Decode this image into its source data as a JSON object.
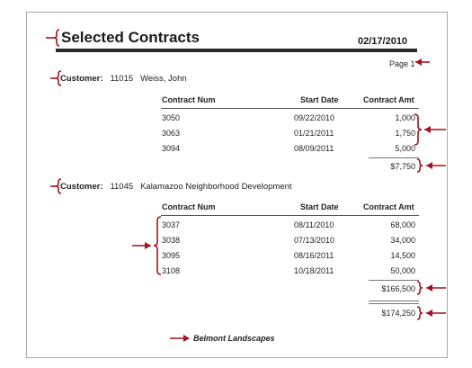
{
  "report": {
    "title": "Selected Contracts",
    "date": "02/17/2010",
    "page_label": "Page 1",
    "footer": "Belmont Landscapes"
  },
  "columns": {
    "contract_num": "Contract Num",
    "start_date": "Start Date",
    "contract_amt": "Contract Amt"
  },
  "groups": [
    {
      "label": "Customer:",
      "id": "11015",
      "name": "Weiss, John",
      "rows": [
        {
          "num": "3050",
          "date": "09/22/2010",
          "amt": "1,000"
        },
        {
          "num": "3063",
          "date": "01/21/2011",
          "amt": "1,750"
        },
        {
          "num": "3094",
          "date": "08/09/2011",
          "amt": "5,000"
        }
      ],
      "subtotal": "$7,750"
    },
    {
      "label": "Customer:",
      "id": "11045",
      "name": "Kalamazoo Neighborhood Development",
      "rows": [
        {
          "num": "3037",
          "date": "08/11/2010",
          "amt": "68,000"
        },
        {
          "num": "3038",
          "date": "07/13/2010",
          "amt": "34,000"
        },
        {
          "num": "3095",
          "date": "08/16/2011",
          "amt": "14,500"
        },
        {
          "num": "3108",
          "date": "10/18/2011",
          "amt": "50,000"
        }
      ],
      "subtotal": "$166,500"
    }
  ],
  "grand_total": "$174,250",
  "colors": {
    "annotation": "#a3121c",
    "text": "#222222"
  }
}
